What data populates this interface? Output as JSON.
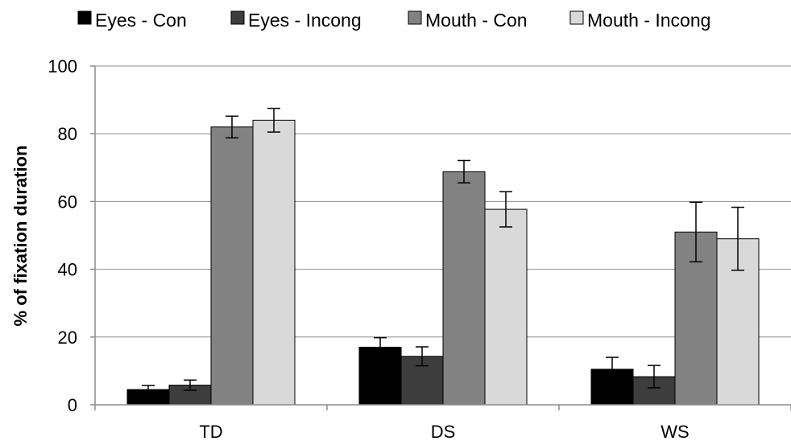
{
  "chart_data": {
    "type": "bar",
    "title": "",
    "xlabel": "",
    "ylabel": "% of fixation duration",
    "ylim": [
      0,
      100
    ],
    "yticks": [
      0,
      20,
      40,
      60,
      80,
      100
    ],
    "grid": true,
    "legend_position": "top",
    "categories": [
      "TD",
      "DS",
      "WS"
    ],
    "series": [
      {
        "name": "Eyes - Con",
        "color": "#000000",
        "values": [
          4.5,
          17,
          10.5
        ],
        "errors": [
          1.2,
          2.8,
          3.5
        ]
      },
      {
        "name": "Eyes - Incong",
        "color": "#3d3d3d",
        "values": [
          5.8,
          14.3,
          8.3
        ],
        "errors": [
          1.5,
          2.8,
          3.3
        ]
      },
      {
        "name": "Mouth - Con",
        "color": "#828282",
        "values": [
          82,
          68.8,
          51
        ],
        "errors": [
          3.2,
          3.3,
          8.8
        ]
      },
      {
        "name": "Mouth - Incong",
        "color": "#d9d9d9",
        "values": [
          84,
          57.7,
          49
        ],
        "errors": [
          3.5,
          5.2,
          9.3
        ]
      }
    ]
  }
}
